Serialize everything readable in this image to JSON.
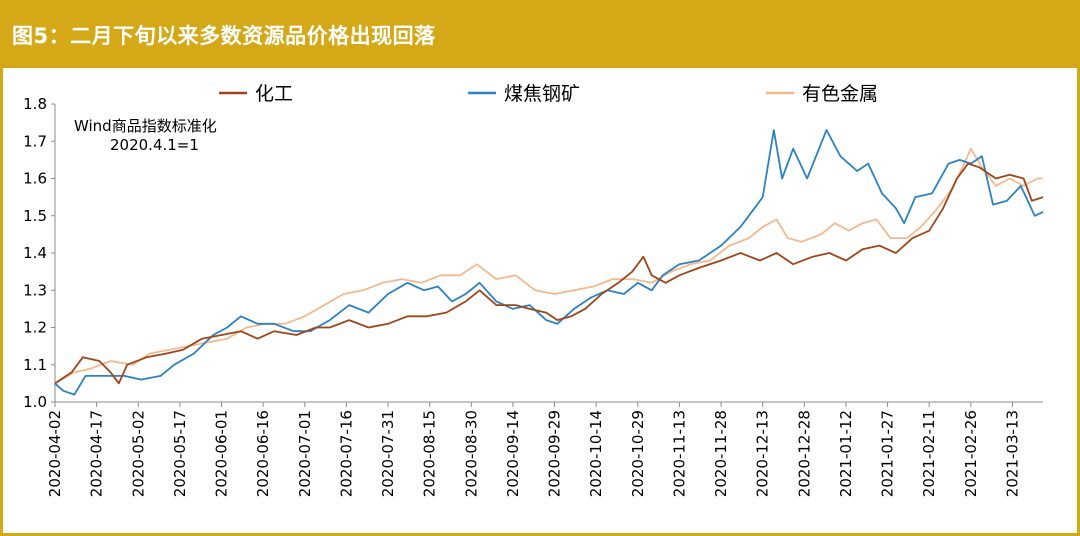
{
  "header": {
    "title": "图5：二月下旬以来多数资源品价格出现回落"
  },
  "chart_data": {
    "type": "line",
    "title": "图5：二月下旬以来多数资源品价格出现回落",
    "annotation": [
      "Wind商品指数标准化",
      "2020.4.1=1"
    ],
    "ylim": [
      1.0,
      1.8
    ],
    "yticks": [
      1.0,
      1.1,
      1.2,
      1.3,
      1.4,
      1.5,
      1.6,
      1.7,
      1.8
    ],
    "ytick_labels": [
      "1.0",
      "1.1",
      "1.2",
      "1.3",
      "1.4",
      "1.5",
      "1.6",
      "1.7",
      "1.8"
    ],
    "xtick_labels": [
      "2020-04-02",
      "2020-04-17",
      "2020-05-02",
      "2020-05-17",
      "2020-06-01",
      "2020-06-16",
      "2020-07-01",
      "2020-07-16",
      "2020-07-31",
      "2020-08-15",
      "2020-08-30",
      "2020-09-14",
      "2020-09-29",
      "2020-10-14",
      "2020-10-29",
      "2020-11-13",
      "2020-11-28",
      "2020-12-13",
      "2020-12-28",
      "2021-01-12",
      "2021-01-27",
      "2021-02-11",
      "2021-02-26",
      "2021-03-13"
    ],
    "x_start": "2020-04-02",
    "x_end": "2021-03-24",
    "series": [
      {
        "name": "化工",
        "color": "#a0451a",
        "points": [
          [
            "2020-04-02",
            1.05
          ],
          [
            "2020-04-08",
            1.08
          ],
          [
            "2020-04-12",
            1.12
          ],
          [
            "2020-04-18",
            1.11
          ],
          [
            "2020-04-22",
            1.08
          ],
          [
            "2020-04-25",
            1.05
          ],
          [
            "2020-04-28",
            1.1
          ],
          [
            "2020-05-05",
            1.12
          ],
          [
            "2020-05-12",
            1.13
          ],
          [
            "2020-05-18",
            1.14
          ],
          [
            "2020-05-25",
            1.17
          ],
          [
            "2020-06-01",
            1.18
          ],
          [
            "2020-06-08",
            1.19
          ],
          [
            "2020-06-14",
            1.17
          ],
          [
            "2020-06-20",
            1.19
          ],
          [
            "2020-06-28",
            1.18
          ],
          [
            "2020-07-05",
            1.2
          ],
          [
            "2020-07-10",
            1.2
          ],
          [
            "2020-07-17",
            1.22
          ],
          [
            "2020-07-24",
            1.2
          ],
          [
            "2020-07-31",
            1.21
          ],
          [
            "2020-08-07",
            1.23
          ],
          [
            "2020-08-14",
            1.23
          ],
          [
            "2020-08-21",
            1.24
          ],
          [
            "2020-08-28",
            1.27
          ],
          [
            "2020-09-02",
            1.3
          ],
          [
            "2020-09-08",
            1.26
          ],
          [
            "2020-09-15",
            1.26
          ],
          [
            "2020-09-20",
            1.25
          ],
          [
            "2020-09-26",
            1.24
          ],
          [
            "2020-09-30",
            1.22
          ],
          [
            "2020-10-05",
            1.23
          ],
          [
            "2020-10-10",
            1.25
          ],
          [
            "2020-10-16",
            1.29
          ],
          [
            "2020-10-22",
            1.32
          ],
          [
            "2020-10-27",
            1.35
          ],
          [
            "2020-10-31",
            1.39
          ],
          [
            "2020-11-03",
            1.34
          ],
          [
            "2020-11-08",
            1.32
          ],
          [
            "2020-11-13",
            1.34
          ],
          [
            "2020-11-20",
            1.36
          ],
          [
            "2020-11-28",
            1.38
          ],
          [
            "2020-12-05",
            1.4
          ],
          [
            "2020-12-12",
            1.38
          ],
          [
            "2020-12-18",
            1.4
          ],
          [
            "2020-12-24",
            1.37
          ],
          [
            "2020-12-31",
            1.39
          ],
          [
            "2021-01-06",
            1.4
          ],
          [
            "2021-01-12",
            1.38
          ],
          [
            "2021-01-18",
            1.41
          ],
          [
            "2021-01-24",
            1.42
          ],
          [
            "2021-01-30",
            1.4
          ],
          [
            "2021-02-05",
            1.44
          ],
          [
            "2021-02-11",
            1.46
          ],
          [
            "2021-02-16",
            1.52
          ],
          [
            "2021-02-21",
            1.6
          ],
          [
            "2021-02-25",
            1.64
          ],
          [
            "2021-03-01",
            1.63
          ],
          [
            "2021-03-07",
            1.6
          ],
          [
            "2021-03-12",
            1.61
          ],
          [
            "2021-03-17",
            1.6
          ],
          [
            "2021-03-20",
            1.54
          ],
          [
            "2021-03-24",
            1.55
          ]
        ]
      },
      {
        "name": "煤焦钢矿",
        "color": "#2b82c3",
        "points": [
          [
            "2020-04-02",
            1.05
          ],
          [
            "2020-04-05",
            1.03
          ],
          [
            "2020-04-09",
            1.02
          ],
          [
            "2020-04-13",
            1.07
          ],
          [
            "2020-04-20",
            1.07
          ],
          [
            "2020-04-27",
            1.07
          ],
          [
            "2020-05-03",
            1.06
          ],
          [
            "2020-05-10",
            1.07
          ],
          [
            "2020-05-15",
            1.1
          ],
          [
            "2020-05-22",
            1.13
          ],
          [
            "2020-05-29",
            1.18
          ],
          [
            "2020-06-03",
            1.2
          ],
          [
            "2020-06-08",
            1.23
          ],
          [
            "2020-06-14",
            1.21
          ],
          [
            "2020-06-20",
            1.21
          ],
          [
            "2020-06-27",
            1.19
          ],
          [
            "2020-07-03",
            1.19
          ],
          [
            "2020-07-10",
            1.22
          ],
          [
            "2020-07-17",
            1.26
          ],
          [
            "2020-07-24",
            1.24
          ],
          [
            "2020-07-31",
            1.29
          ],
          [
            "2020-08-07",
            1.32
          ],
          [
            "2020-08-13",
            1.3
          ],
          [
            "2020-08-18",
            1.31
          ],
          [
            "2020-08-23",
            1.27
          ],
          [
            "2020-08-28",
            1.29
          ],
          [
            "2020-09-02",
            1.32
          ],
          [
            "2020-09-08",
            1.27
          ],
          [
            "2020-09-14",
            1.25
          ],
          [
            "2020-09-20",
            1.26
          ],
          [
            "2020-09-26",
            1.22
          ],
          [
            "2020-09-30",
            1.21
          ],
          [
            "2020-10-06",
            1.25
          ],
          [
            "2020-10-12",
            1.28
          ],
          [
            "2020-10-18",
            1.3
          ],
          [
            "2020-10-24",
            1.29
          ],
          [
            "2020-10-29",
            1.32
          ],
          [
            "2020-11-03",
            1.3
          ],
          [
            "2020-11-07",
            1.34
          ],
          [
            "2020-11-13",
            1.37
          ],
          [
            "2020-11-20",
            1.38
          ],
          [
            "2020-11-28",
            1.42
          ],
          [
            "2020-12-05",
            1.47
          ],
          [
            "2020-12-10",
            1.52
          ],
          [
            "2020-12-13",
            1.55
          ],
          [
            "2020-12-17",
            1.73
          ],
          [
            "2020-12-20",
            1.6
          ],
          [
            "2020-12-24",
            1.68
          ],
          [
            "2020-12-29",
            1.6
          ],
          [
            "2021-01-05",
            1.73
          ],
          [
            "2021-01-10",
            1.66
          ],
          [
            "2021-01-16",
            1.62
          ],
          [
            "2021-01-20",
            1.64
          ],
          [
            "2021-01-25",
            1.56
          ],
          [
            "2021-01-30",
            1.52
          ],
          [
            "2021-02-02",
            1.48
          ],
          [
            "2021-02-06",
            1.55
          ],
          [
            "2021-02-12",
            1.56
          ],
          [
            "2021-02-18",
            1.64
          ],
          [
            "2021-02-22",
            1.65
          ],
          [
            "2021-02-26",
            1.64
          ],
          [
            "2021-03-02",
            1.66
          ],
          [
            "2021-03-06",
            1.53
          ],
          [
            "2021-03-11",
            1.54
          ],
          [
            "2021-03-16",
            1.58
          ],
          [
            "2021-03-21",
            1.5
          ],
          [
            "2021-03-24",
            1.51
          ]
        ]
      },
      {
        "name": "有色金属",
        "color": "#f3b98d",
        "points": [
          [
            "2020-04-02",
            1.05
          ],
          [
            "2020-04-09",
            1.08
          ],
          [
            "2020-04-15",
            1.09
          ],
          [
            "2020-04-22",
            1.11
          ],
          [
            "2020-04-30",
            1.1
          ],
          [
            "2020-05-06",
            1.13
          ],
          [
            "2020-05-13",
            1.14
          ],
          [
            "2020-05-20",
            1.15
          ],
          [
            "2020-05-27",
            1.16
          ],
          [
            "2020-06-03",
            1.17
          ],
          [
            "2020-06-10",
            1.2
          ],
          [
            "2020-06-17",
            1.21
          ],
          [
            "2020-06-24",
            1.21
          ],
          [
            "2020-07-01",
            1.23
          ],
          [
            "2020-07-08",
            1.26
          ],
          [
            "2020-07-15",
            1.29
          ],
          [
            "2020-07-22",
            1.3
          ],
          [
            "2020-07-29",
            1.32
          ],
          [
            "2020-08-05",
            1.33
          ],
          [
            "2020-08-12",
            1.32
          ],
          [
            "2020-08-19",
            1.34
          ],
          [
            "2020-08-26",
            1.34
          ],
          [
            "2020-09-01",
            1.37
          ],
          [
            "2020-09-08",
            1.33
          ],
          [
            "2020-09-15",
            1.34
          ],
          [
            "2020-09-22",
            1.3
          ],
          [
            "2020-09-29",
            1.29
          ],
          [
            "2020-10-06",
            1.3
          ],
          [
            "2020-10-13",
            1.31
          ],
          [
            "2020-10-20",
            1.33
          ],
          [
            "2020-10-27",
            1.33
          ],
          [
            "2020-11-03",
            1.32
          ],
          [
            "2020-11-10",
            1.35
          ],
          [
            "2020-11-17",
            1.37
          ],
          [
            "2020-11-24",
            1.38
          ],
          [
            "2020-12-01",
            1.42
          ],
          [
            "2020-12-08",
            1.44
          ],
          [
            "2020-12-13",
            1.47
          ],
          [
            "2020-12-18",
            1.49
          ],
          [
            "2020-12-22",
            1.44
          ],
          [
            "2020-12-27",
            1.43
          ],
          [
            "2021-01-03",
            1.45
          ],
          [
            "2021-01-08",
            1.48
          ],
          [
            "2021-01-13",
            1.46
          ],
          [
            "2021-01-18",
            1.48
          ],
          [
            "2021-01-23",
            1.49
          ],
          [
            "2021-01-28",
            1.44
          ],
          [
            "2021-02-03",
            1.44
          ],
          [
            "2021-02-08",
            1.47
          ],
          [
            "2021-02-14",
            1.52
          ],
          [
            "2021-02-19",
            1.57
          ],
          [
            "2021-02-23",
            1.63
          ],
          [
            "2021-02-26",
            1.68
          ],
          [
            "2021-03-02",
            1.63
          ],
          [
            "2021-03-07",
            1.58
          ],
          [
            "2021-03-12",
            1.6
          ],
          [
            "2021-03-17",
            1.58
          ],
          [
            "2021-03-22",
            1.6
          ],
          [
            "2021-03-24",
            1.6
          ]
        ]
      }
    ]
  }
}
